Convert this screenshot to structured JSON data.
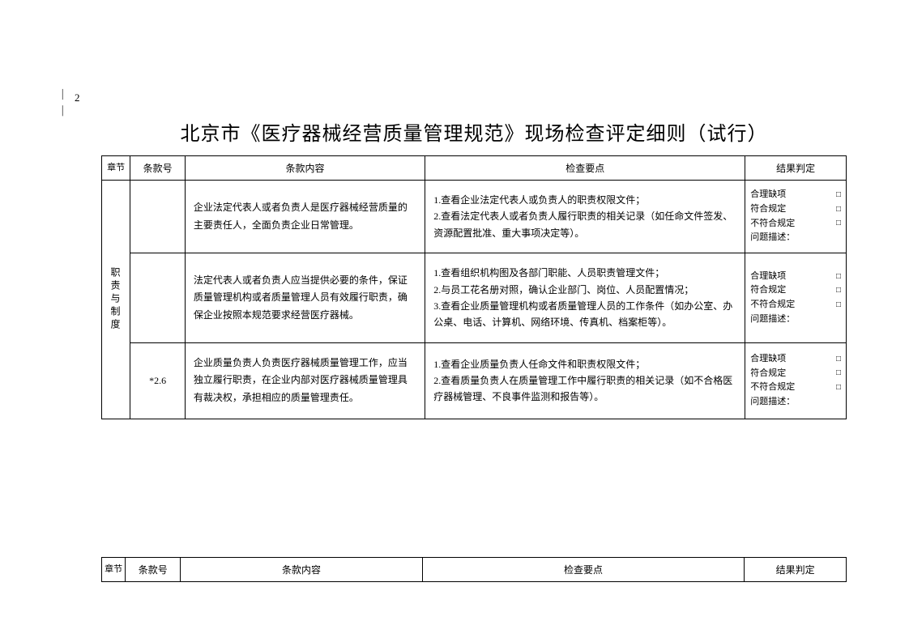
{
  "page_marker_left": "—",
  "page_number": "2",
  "page_marker_right": "—",
  "title": "北京市《医疗器械经营质量管理规范》现场检查评定细则（试行）",
  "headers": {
    "chapter": "章节",
    "clause_no": "条款号",
    "content": "条款内容",
    "checkpoint": "检查要点",
    "result": "结果判定"
  },
  "chapter_label": "职责与制度",
  "rows": [
    {
      "clause_no": "",
      "content": "企业法定代表人或者负责人是医疗器械经营质量的主要责任人，全面负责企业日常管理。",
      "checkpoint": "1.查看企业法定代表人或负责人的职责权限文件；\n2.查看法定代表人或者负责人履行职责的相关记录（如任命文件签发、资源配置批准、重大事项决定等）。"
    },
    {
      "clause_no": "",
      "content": "法定代表人或者负责人应当提供必要的条件，保证质量管理机构或者质量管理人员有效履行职责，确保企业按照本规范要求经营医疗器械。",
      "checkpoint": "1.查看组织机构图及各部门职能、人员职责管理文件；\n2.与员工花名册对照，确认企业部门、岗位、人员配置情况；\n3.查看企业质量管理机构或者质量管理人员的工作条件（如办公室、办公桌、电话、计算机、网络环境、传真机、档案柜等）。"
    },
    {
      "clause_no": "*2.6",
      "content": "企业质量负责人负责医疗器械质量管理工作，应当独立履行职责，在企业内部对医疗器械质量管理具有裁决权，承担相应的质量管理责任。",
      "checkpoint": "1.查看企业质量负责人任命文件和职责权限文件；\n2.查看质量负责人在质量管理工作中履行职责的相关记录（如不合格医疗器械管理、不良事件监测和报告等）。"
    }
  ],
  "result_options": {
    "reasonable_defect": "合理缺项",
    "compliant": "符合规定",
    "non_compliant": "不符合规定",
    "issue_desc": "问题描述："
  },
  "checkbox_symbol": "□"
}
